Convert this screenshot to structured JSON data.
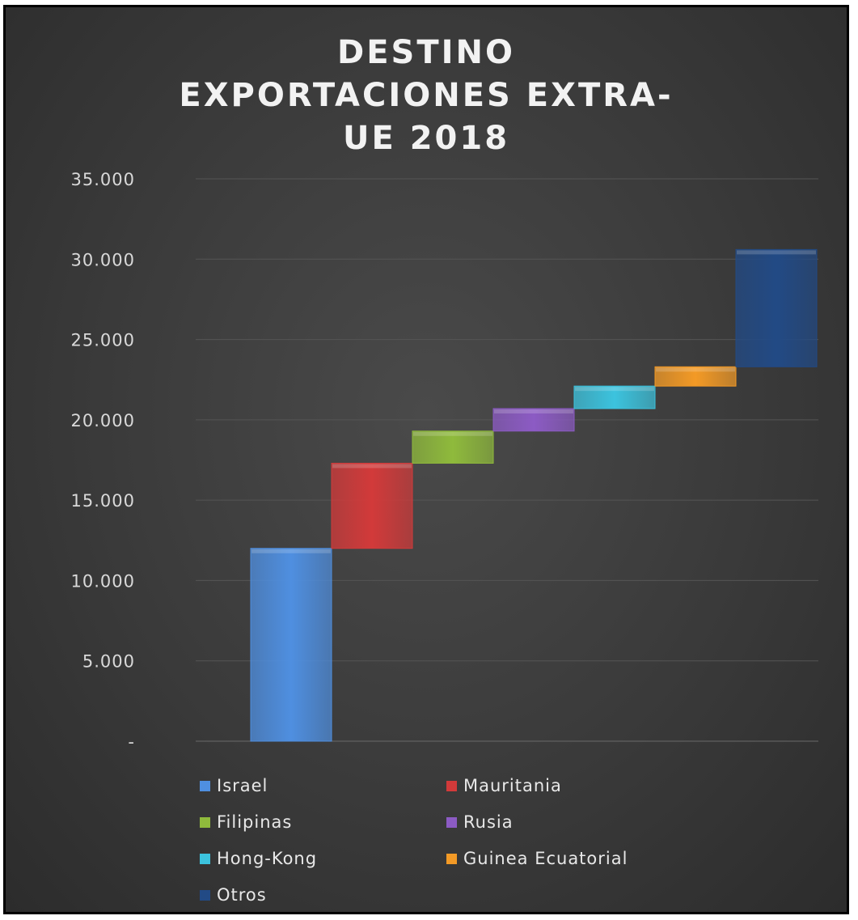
{
  "chart_data": {
    "type": "bar",
    "subtype": "waterfall",
    "title_lines": [
      "DESTINO",
      "EXPORTACIONES EXTRA-",
      "UE 2018"
    ],
    "categories": [
      "Israel",
      "Mauritania",
      "Filipinas",
      "Rusia",
      "Hong-Kong",
      "Guinea Ecuatorial",
      "Otros"
    ],
    "series": [
      {
        "name": "Israel",
        "start": 0,
        "end": 12000,
        "color": "#4f8fe0"
      },
      {
        "name": "Mauritania",
        "start": 12000,
        "end": 17300,
        "color": "#d23a3a"
      },
      {
        "name": "Filipinas",
        "start": 17300,
        "end": 19300,
        "color": "#8fba3c"
      },
      {
        "name": "Rusia",
        "start": 19300,
        "end": 20700,
        "color": "#8c5bc4"
      },
      {
        "name": "Hong-Kong",
        "start": 20700,
        "end": 22100,
        "color": "#3cc3de"
      },
      {
        "name": "Guinea Ecuatorial",
        "start": 22100,
        "end": 23300,
        "color": "#f39a26"
      },
      {
        "name": "Otros",
        "start": 23300,
        "end": 30600,
        "color": "#224a85"
      }
    ],
    "ylim": [
      0,
      35000
    ],
    "yticks": [
      0,
      5000,
      10000,
      15000,
      20000,
      25000,
      30000,
      35000
    ],
    "ytick_labels": [
      "-",
      "5.000",
      "10.000",
      "15.000",
      "20.000",
      "25.000",
      "30.000",
      "35.000"
    ],
    "grid": true,
    "legend_position": "bottom"
  }
}
